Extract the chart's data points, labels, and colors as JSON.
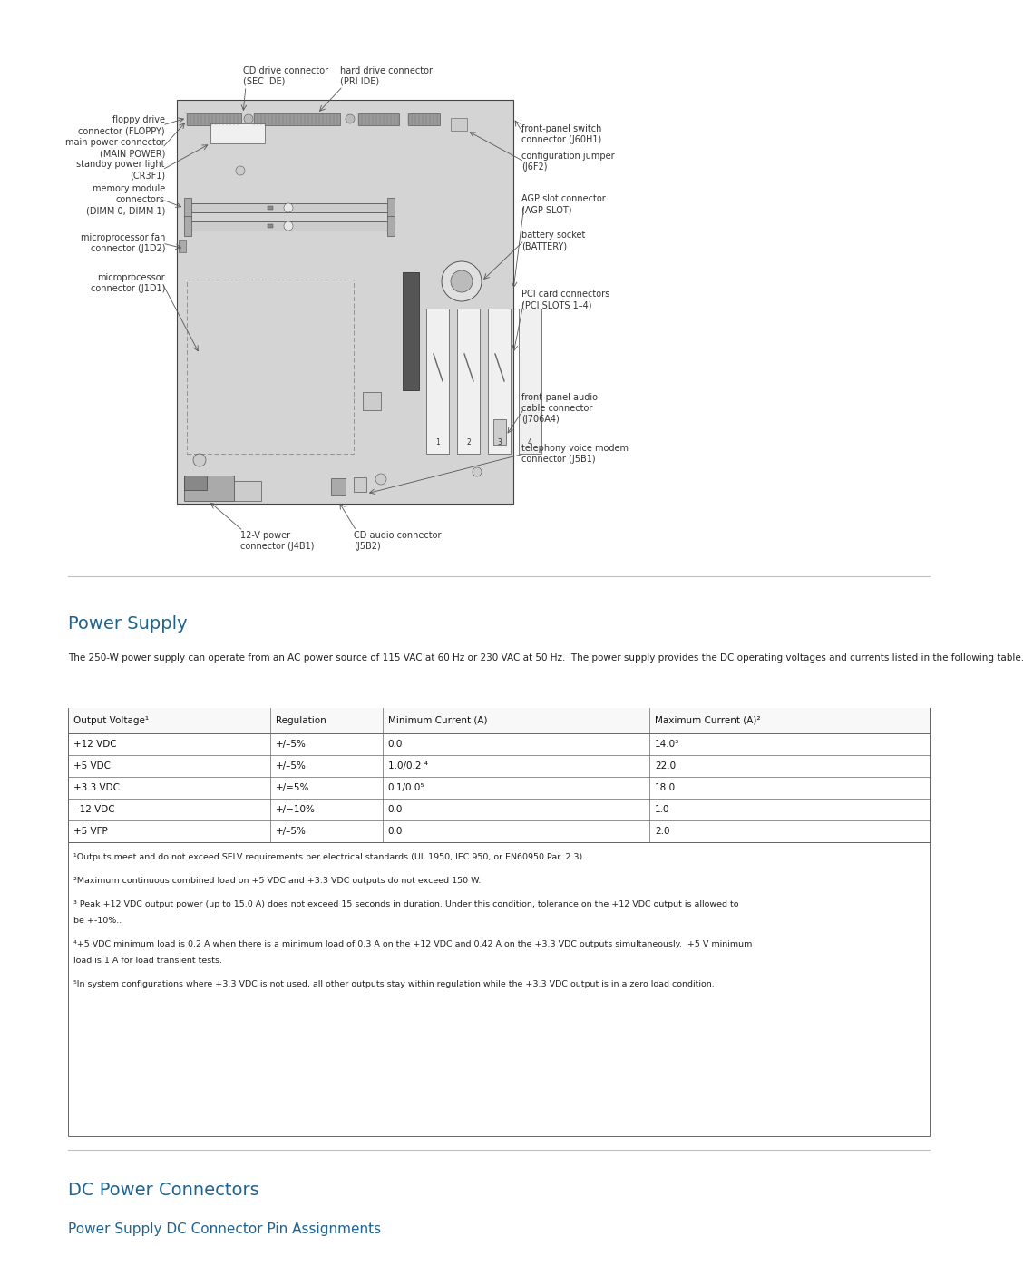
{
  "bg_color": "#ffffff",
  "page_width": 10.8,
  "page_height": 13.97,
  "section1_heading": "Power Supply",
  "heading_color": "#1f6391",
  "section1_intro": "The 250-W power supply can operate from an AC power source of 115 VAC at 60 Hz or 230 VAC at 50 Hz.  The power supply provides the DC operating voltages and currents listed in the following table.",
  "table_headers": [
    "Output Voltage¹",
    "Regulation",
    "Minimum Current (A)",
    "Maximum Current (A)²"
  ],
  "table_rows": [
    [
      "+12 VDC",
      "+/–5%",
      "0.0",
      "14.0³"
    ],
    [
      "+5 VDC",
      "+/–5%",
      "1.0/0.2 ⁴",
      "22.0"
    ],
    [
      "+3.3 VDC",
      "+/=5%",
      "0.1/0.0⁵",
      "18.0"
    ],
    [
      "‒12 VDC",
      "+/−10%",
      "0.0",
      "1.0"
    ],
    [
      "+5 VFP",
      "+/–5%",
      "0.0",
      "2.0"
    ]
  ],
  "footnote1": "¹Outputs meet and do not exceed SELV requirements per electrical standards (UL 1950, IEC 950, or EN60950 Par. 2.3).",
  "footnote2": "²Maximum continuous combined load on +5 VDC and +3.3 VDC outputs do not exceed 150 W.",
  "footnote3": "³ Peak +12 VDC output power (up to 15.0 A) does not exceed 15 seconds in duration. Under this condition, tolerance on the +12 VDC output is allowed to be +-10%..",
  "footnote4": "⁴+5 VDC minimum load is 0.2 A when there is a minimum load of 0.3 A on the +12 VDC and 0.42 A on the +3.3 VDC outputs simultaneously.  +5 V minimum load is 1 A for load transient tests.",
  "footnote5": "⁵In system configurations where +3.3 VDC is not used, all other outputs stay within regulation while the +3.3 VDC output is in a zero load condition.",
  "section2_heading": "DC Power Connectors",
  "section3_heading": "Power Supply DC Connector Pin Assignments",
  "hr_color": "#c0c0c0",
  "table_border_color": "#666666",
  "label_color": "#333333",
  "label_fs": 7.0,
  "arrow_color": "#555555",
  "board_color": "#d4d4d4",
  "board_edge_color": "#444444",
  "connector_dark": "#888888",
  "connector_mid": "#aaaaaa",
  "connector_light": "#cccccc"
}
